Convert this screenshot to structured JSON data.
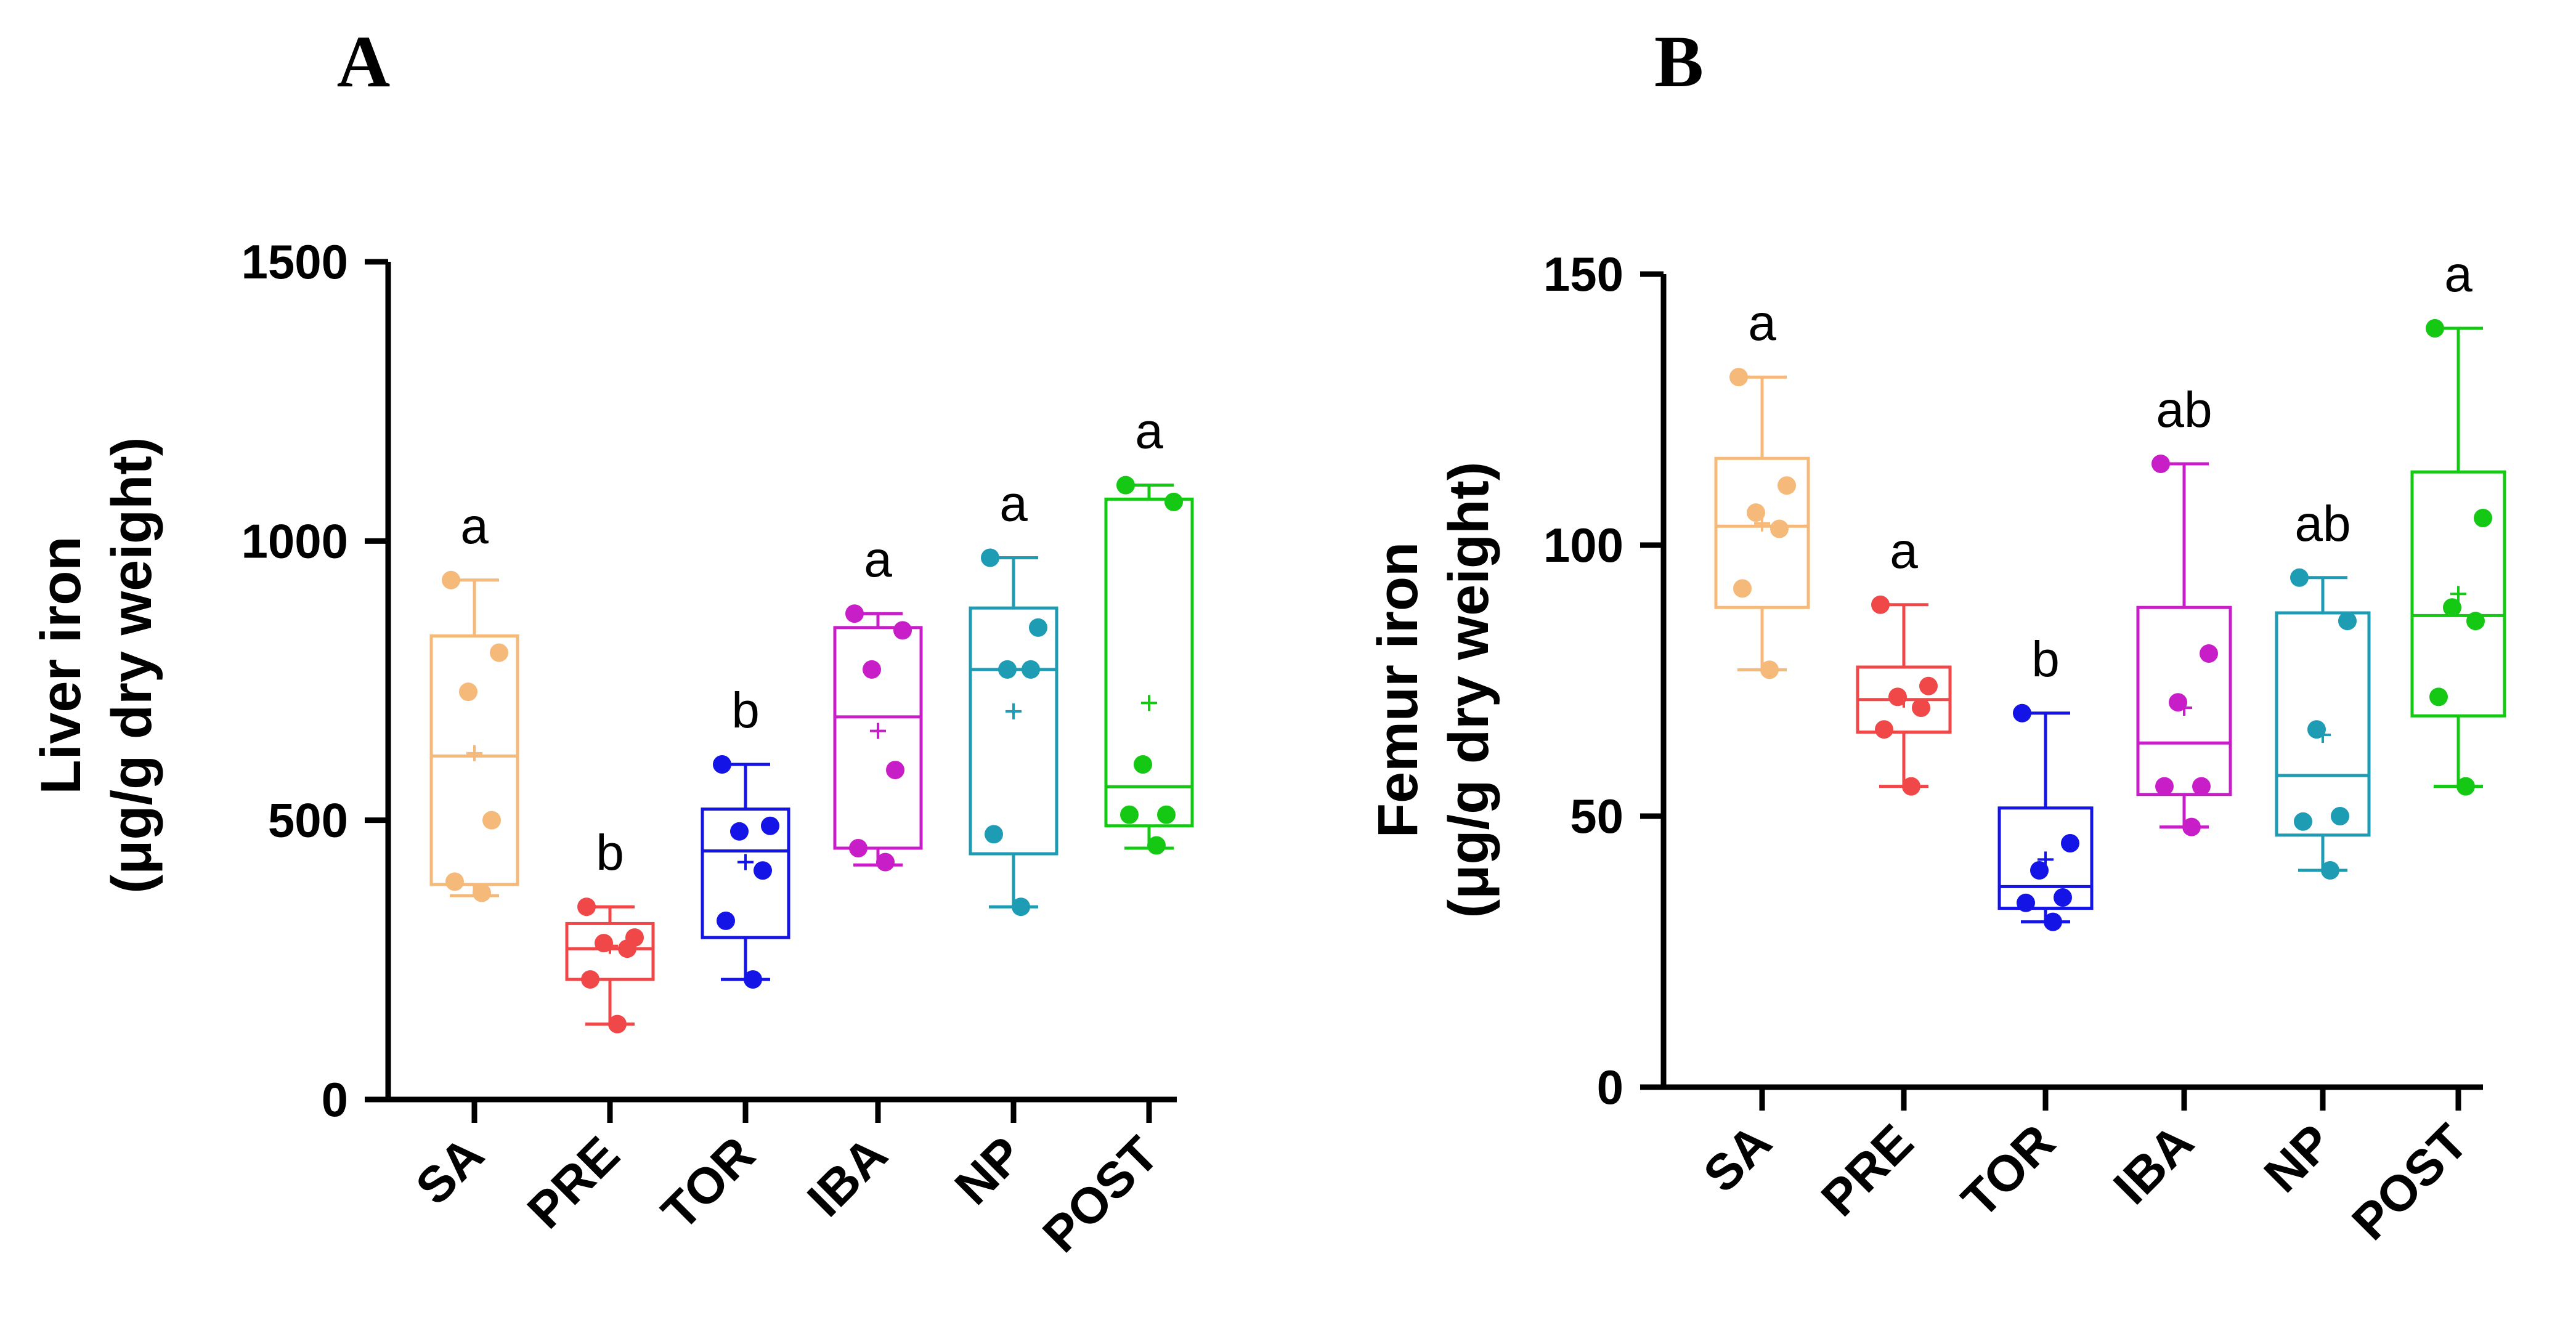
{
  "chart_data": [
    {
      "panel": "A",
      "type": "boxplot",
      "ylabel_line1": "Liver iron",
      "ylabel_line2": "(μg/g dry weight)",
      "ylim": [
        0,
        1500
      ],
      "yticks": [
        0,
        500,
        1000,
        1500
      ],
      "yticklabels": [
        "0",
        "500",
        "1000",
        "1500"
      ],
      "categories": [
        "SA",
        "PRE",
        "TOR",
        "IBA",
        "NP",
        "POST"
      ],
      "groups": [
        {
          "name": "SA",
          "color": "#F5B97A",
          "min": 365,
          "q1": 385,
          "median": 615,
          "q3": 830,
          "max": 930,
          "mean": 620,
          "points": [
            930,
            800,
            730,
            500,
            390,
            370
          ],
          "sig": "a"
        },
        {
          "name": "PRE",
          "color": "#F04848",
          "min": 135,
          "q1": 215,
          "median": 270,
          "q3": 315,
          "max": 345,
          "mean": 275,
          "points": [
            345,
            290,
            280,
            270,
            215,
            135
          ],
          "sig": "b"
        },
        {
          "name": "TOR",
          "color": "#1414E6",
          "min": 215,
          "q1": 290,
          "median": 445,
          "q3": 520,
          "max": 600,
          "mean": 425,
          "points": [
            600,
            490,
            480,
            410,
            320,
            215
          ],
          "sig": "b"
        },
        {
          "name": "IBA",
          "color": "#C81EC8",
          "min": 420,
          "q1": 450,
          "median": 685,
          "q3": 845,
          "max": 870,
          "mean": 660,
          "points": [
            870,
            840,
            770,
            590,
            450,
            425
          ],
          "sig": "a"
        },
        {
          "name": "NP",
          "color": "#1E9CB4",
          "min": 345,
          "q1": 440,
          "median": 770,
          "q3": 880,
          "max": 970,
          "mean": 695,
          "points": [
            970,
            845,
            770,
            770,
            475,
            345
          ],
          "sig": "a"
        },
        {
          "name": "POST",
          "color": "#14C814",
          "min": 450,
          "q1": 490,
          "median": 560,
          "q3": 1075,
          "max": 1100,
          "mean": 710,
          "points": [
            1100,
            1070,
            600,
            510,
            510,
            455
          ],
          "sig": "a"
        }
      ]
    },
    {
      "panel": "B",
      "type": "boxplot",
      "ylabel_line1": "Femur iron",
      "ylabel_line2": "(μg/g dry weight)",
      "ylim": [
        0,
        150
      ],
      "yticks": [
        0,
        50,
        100,
        150
      ],
      "yticklabels": [
        "0",
        "50",
        "100",
        "150"
      ],
      "categories": [
        "SA",
        "PRE",
        "TOR",
        "IBA",
        "NP",
        "POST"
      ],
      "groups": [
        {
          "name": "SA",
          "color": "#F5B97A",
          "min": 77,
          "q1": 88.5,
          "median": 103.5,
          "q3": 116,
          "max": 131,
          "mean": 104,
          "points": [
            131,
            111,
            106,
            103,
            92,
            77
          ],
          "sig": "a"
        },
        {
          "name": "PRE",
          "color": "#F04848",
          "min": 55.5,
          "q1": 65.5,
          "median": 71.5,
          "q3": 77.5,
          "max": 89,
          "mean": 71.5,
          "points": [
            89,
            74,
            72,
            70,
            66,
            55.5
          ],
          "sig": "a"
        },
        {
          "name": "TOR",
          "color": "#1414E6",
          "min": 30.5,
          "q1": 33,
          "median": 37,
          "q3": 51.5,
          "max": 69,
          "mean": 42,
          "points": [
            69,
            45,
            40,
            35,
            34,
            30.5
          ],
          "sig": "b"
        },
        {
          "name": "IBA",
          "color": "#C81EC8",
          "min": 48,
          "q1": 54,
          "median": 63.5,
          "q3": 88.5,
          "max": 115,
          "mean": 70,
          "points": [
            115,
            80,
            71,
            55.5,
            55.5,
            48
          ],
          "sig": "ab"
        },
        {
          "name": "NP",
          "color": "#1E9CB4",
          "min": 40,
          "q1": 46.5,
          "median": 57.5,
          "q3": 87.5,
          "max": 94,
          "mean": 65,
          "points": [
            94,
            86,
            66,
            50,
            49,
            40
          ],
          "sig": "ab"
        },
        {
          "name": "POST",
          "color": "#14C814",
          "min": 55.5,
          "q1": 68.5,
          "median": 87,
          "q3": 113.5,
          "max": 140,
          "mean": 91,
          "points": [
            140,
            105,
            88.5,
            86,
            72,
            55.5
          ],
          "sig": "a"
        }
      ]
    }
  ]
}
